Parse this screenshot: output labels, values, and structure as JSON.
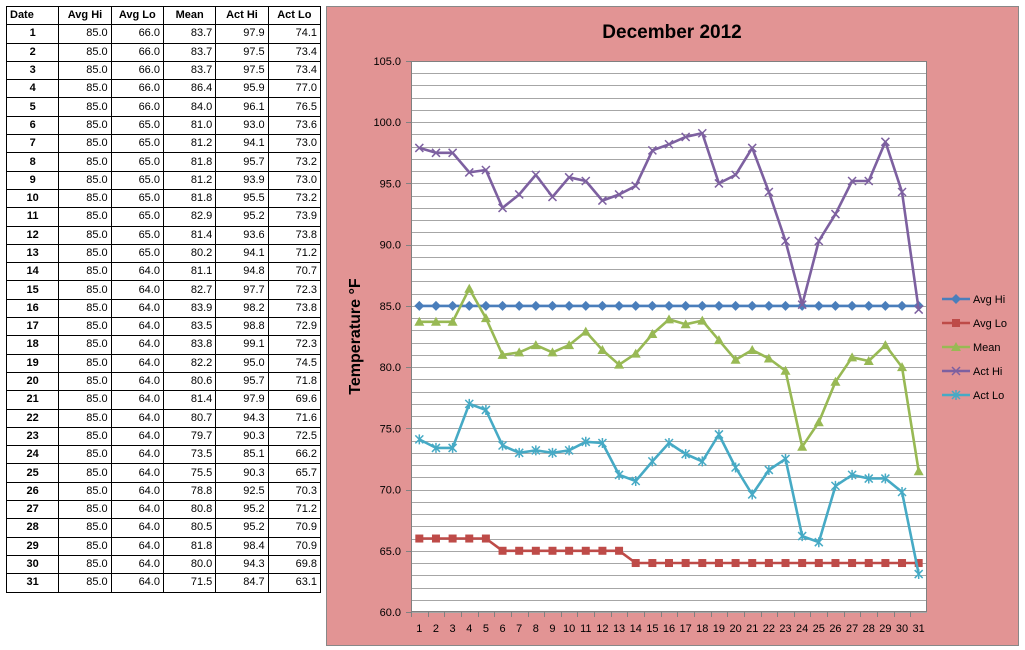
{
  "table": {
    "headers": [
      "Date",
      "Avg Hi",
      "Avg Lo",
      "Mean",
      "Act Hi",
      "Act Lo"
    ],
    "rows": [
      [
        "1",
        "85.0",
        "66.0",
        "83.7",
        "97.9",
        "74.1"
      ],
      [
        "2",
        "85.0",
        "66.0",
        "83.7",
        "97.5",
        "73.4"
      ],
      [
        "3",
        "85.0",
        "66.0",
        "83.7",
        "97.5",
        "73.4"
      ],
      [
        "4",
        "85.0",
        "66.0",
        "86.4",
        "95.9",
        "77.0"
      ],
      [
        "5",
        "85.0",
        "66.0",
        "84.0",
        "96.1",
        "76.5"
      ],
      [
        "6",
        "85.0",
        "65.0",
        "81.0",
        "93.0",
        "73.6"
      ],
      [
        "7",
        "85.0",
        "65.0",
        "81.2",
        "94.1",
        "73.0"
      ],
      [
        "8",
        "85.0",
        "65.0",
        "81.8",
        "95.7",
        "73.2"
      ],
      [
        "9",
        "85.0",
        "65.0",
        "81.2",
        "93.9",
        "73.0"
      ],
      [
        "10",
        "85.0",
        "65.0",
        "81.8",
        "95.5",
        "73.2"
      ],
      [
        "11",
        "85.0",
        "65.0",
        "82.9",
        "95.2",
        "73.9"
      ],
      [
        "12",
        "85.0",
        "65.0",
        "81.4",
        "93.6",
        "73.8"
      ],
      [
        "13",
        "85.0",
        "65.0",
        "80.2",
        "94.1",
        "71.2"
      ],
      [
        "14",
        "85.0",
        "64.0",
        "81.1",
        "94.8",
        "70.7"
      ],
      [
        "15",
        "85.0",
        "64.0",
        "82.7",
        "97.7",
        "72.3"
      ],
      [
        "16",
        "85.0",
        "64.0",
        "83.9",
        "98.2",
        "73.8"
      ],
      [
        "17",
        "85.0",
        "64.0",
        "83.5",
        "98.8",
        "72.9"
      ],
      [
        "18",
        "85.0",
        "64.0",
        "83.8",
        "99.1",
        "72.3"
      ],
      [
        "19",
        "85.0",
        "64.0",
        "82.2",
        "95.0",
        "74.5"
      ],
      [
        "20",
        "85.0",
        "64.0",
        "80.6",
        "95.7",
        "71.8"
      ],
      [
        "21",
        "85.0",
        "64.0",
        "81.4",
        "97.9",
        "69.6"
      ],
      [
        "22",
        "85.0",
        "64.0",
        "80.7",
        "94.3",
        "71.6"
      ],
      [
        "23",
        "85.0",
        "64.0",
        "79.7",
        "90.3",
        "72.5"
      ],
      [
        "24",
        "85.0",
        "64.0",
        "73.5",
        "85.1",
        "66.2"
      ],
      [
        "25",
        "85.0",
        "64.0",
        "75.5",
        "90.3",
        "65.7"
      ],
      [
        "26",
        "85.0",
        "64.0",
        "78.8",
        "92.5",
        "70.3"
      ],
      [
        "27",
        "85.0",
        "64.0",
        "80.8",
        "95.2",
        "71.2"
      ],
      [
        "28",
        "85.0",
        "64.0",
        "80.5",
        "95.2",
        "70.9"
      ],
      [
        "29",
        "85.0",
        "64.0",
        "81.8",
        "98.4",
        "70.9"
      ],
      [
        "30",
        "85.0",
        "64.0",
        "80.0",
        "94.3",
        "69.8"
      ],
      [
        "31",
        "85.0",
        "64.0",
        "71.5",
        "84.7",
        "63.1"
      ]
    ]
  },
  "colors": {
    "chart_background": "#E29494",
    "plot_background": "#FFFFFF",
    "gridline": "#A6A6A6"
  },
  "chart_data": {
    "type": "line",
    "title": "December 2012",
    "xlabel": "",
    "ylabel": "Temperature °F",
    "x": [
      1,
      2,
      3,
      4,
      5,
      6,
      7,
      8,
      9,
      10,
      11,
      12,
      13,
      14,
      15,
      16,
      17,
      18,
      19,
      20,
      21,
      22,
      23,
      24,
      25,
      26,
      27,
      28,
      29,
      30,
      31
    ],
    "ylim": [
      60,
      105
    ],
    "yticks": [
      "60.0",
      "65.0",
      "70.0",
      "75.0",
      "80.0",
      "85.0",
      "90.0",
      "95.0",
      "100.0",
      "105.0"
    ],
    "minor_grid_step": 1,
    "grid": true,
    "legend_position": "right",
    "series": [
      {
        "name": "Avg Hi",
        "color": "#4A7EBB",
        "marker": "diamond",
        "values": [
          85,
          85,
          85,
          85,
          85,
          85,
          85,
          85,
          85,
          85,
          85,
          85,
          85,
          85,
          85,
          85,
          85,
          85,
          85,
          85,
          85,
          85,
          85,
          85,
          85,
          85,
          85,
          85,
          85,
          85,
          85
        ]
      },
      {
        "name": "Avg Lo",
        "color": "#BE4B48",
        "marker": "square",
        "values": [
          66,
          66,
          66,
          66,
          66,
          65,
          65,
          65,
          65,
          65,
          65,
          65,
          65,
          64,
          64,
          64,
          64,
          64,
          64,
          64,
          64,
          64,
          64,
          64,
          64,
          64,
          64,
          64,
          64,
          64,
          64
        ]
      },
      {
        "name": "Mean",
        "color": "#98B954",
        "marker": "triangle",
        "values": [
          83.7,
          83.7,
          83.7,
          86.4,
          84.0,
          81.0,
          81.2,
          81.8,
          81.2,
          81.8,
          82.9,
          81.4,
          80.2,
          81.1,
          82.7,
          83.9,
          83.5,
          83.8,
          82.2,
          80.6,
          81.4,
          80.7,
          79.7,
          73.5,
          75.5,
          78.8,
          80.8,
          80.5,
          81.8,
          80.0,
          71.5
        ]
      },
      {
        "name": "Act Hi",
        "color": "#7D60A0",
        "marker": "x",
        "values": [
          97.9,
          97.5,
          97.5,
          95.9,
          96.1,
          93.0,
          94.1,
          95.7,
          93.9,
          95.5,
          95.2,
          93.6,
          94.1,
          94.8,
          97.7,
          98.2,
          98.8,
          99.1,
          95.0,
          95.7,
          97.9,
          94.3,
          90.3,
          85.1,
          90.3,
          92.5,
          95.2,
          95.2,
          98.4,
          94.3,
          84.7
        ]
      },
      {
        "name": "Act Lo",
        "color": "#46AAC5",
        "marker": "star",
        "values": [
          74.1,
          73.4,
          73.4,
          77.0,
          76.5,
          73.6,
          73.0,
          73.2,
          73.0,
          73.2,
          73.9,
          73.8,
          71.2,
          70.7,
          72.3,
          73.8,
          72.9,
          72.3,
          74.5,
          71.8,
          69.6,
          71.6,
          72.5,
          66.2,
          65.7,
          70.3,
          71.2,
          70.9,
          70.9,
          69.8,
          63.1
        ]
      }
    ]
  }
}
